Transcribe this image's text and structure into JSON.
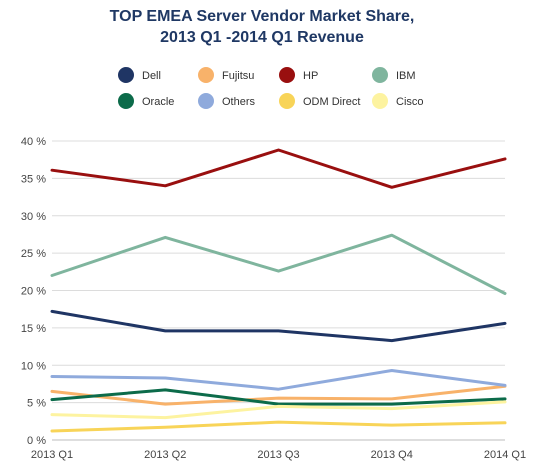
{
  "chart_data": {
    "type": "line",
    "title_lines": [
      "TOP EMEA Server Vendor Market Share,",
      "2013 Q1 -2014 Q1  Revenue"
    ],
    "categories": [
      "2013 Q1",
      "2013 Q2",
      "2013 Q3",
      "2013 Q4",
      "2014 Q1"
    ],
    "ylim": [
      0,
      40
    ],
    "y_ticks": [
      0,
      5,
      10,
      15,
      20,
      25,
      30,
      35,
      40
    ],
    "y_tick_labels": [
      "0 %",
      "5 %",
      "10 %",
      "15 %",
      "20 %",
      "25 %",
      "30 %",
      "35 %",
      "40 %"
    ],
    "grid": true,
    "legend_position": "top",
    "series": [
      {
        "name": "Dell",
        "color": "#1f3564",
        "values": [
          17.2,
          14.6,
          14.6,
          13.3,
          15.6
        ]
      },
      {
        "name": "Fujitsu",
        "color": "#f8b26a",
        "values": [
          6.5,
          4.8,
          5.6,
          5.5,
          7.2
        ]
      },
      {
        "name": "HP",
        "color": "#990f0f",
        "values": [
          36.1,
          34.0,
          38.8,
          33.8,
          37.6
        ]
      },
      {
        "name": "IBM",
        "color": "#7fb59e",
        "values": [
          22.0,
          27.1,
          22.6,
          27.4,
          19.6
        ]
      },
      {
        "name": "Oracle",
        "color": "#0c6b4a",
        "values": [
          5.4,
          6.7,
          4.8,
          4.8,
          5.5
        ]
      },
      {
        "name": "Others",
        "color": "#8faadc",
        "values": [
          8.5,
          8.3,
          6.8,
          9.3,
          7.3
        ]
      },
      {
        "name": "ODM Direct",
        "color": "#f8d458",
        "values": [
          1.2,
          1.7,
          2.4,
          2.0,
          2.3
        ]
      },
      {
        "name": "Cisco",
        "color": "#fdf3a0",
        "values": [
          3.4,
          3.0,
          4.5,
          4.2,
          5.1
        ]
      }
    ]
  }
}
